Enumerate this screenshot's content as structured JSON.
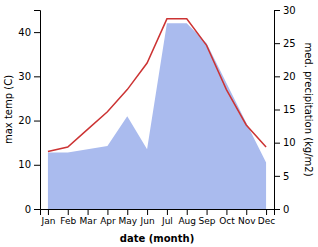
{
  "chart_data": {
    "type": "line",
    "x_label": "date (month)",
    "y_label": "max temp (C)",
    "y2_label": "med. precipitation (kg/m2)",
    "categories": [
      "Jan",
      "Feb",
      "Mar",
      "Apr",
      "May",
      "Jun",
      "Jul",
      "Aug",
      "Sep",
      "Oct",
      "Nov",
      "Dec"
    ],
    "series": [
      {
        "type": "area",
        "axis": "y2",
        "color": "#aabbee",
        "values": [
          8.5,
          8.5,
          9,
          9.5,
          14,
          9,
          28,
          28,
          25,
          19,
          13,
          7
        ]
      },
      {
        "type": "line",
        "color": "#cc3333",
        "values": [
          13,
          14,
          18,
          22,
          27,
          33,
          43,
          43,
          37,
          27,
          19,
          14
        ]
      }
    ],
    "ylim": [
      0,
      45
    ],
    "yticks": [
      0,
      10,
      20,
      30,
      40
    ],
    "y2lim": [
      0,
      30
    ],
    "y2ticks": [
      0,
      5,
      10,
      15,
      20,
      25,
      30
    ],
    "grid": false
  }
}
